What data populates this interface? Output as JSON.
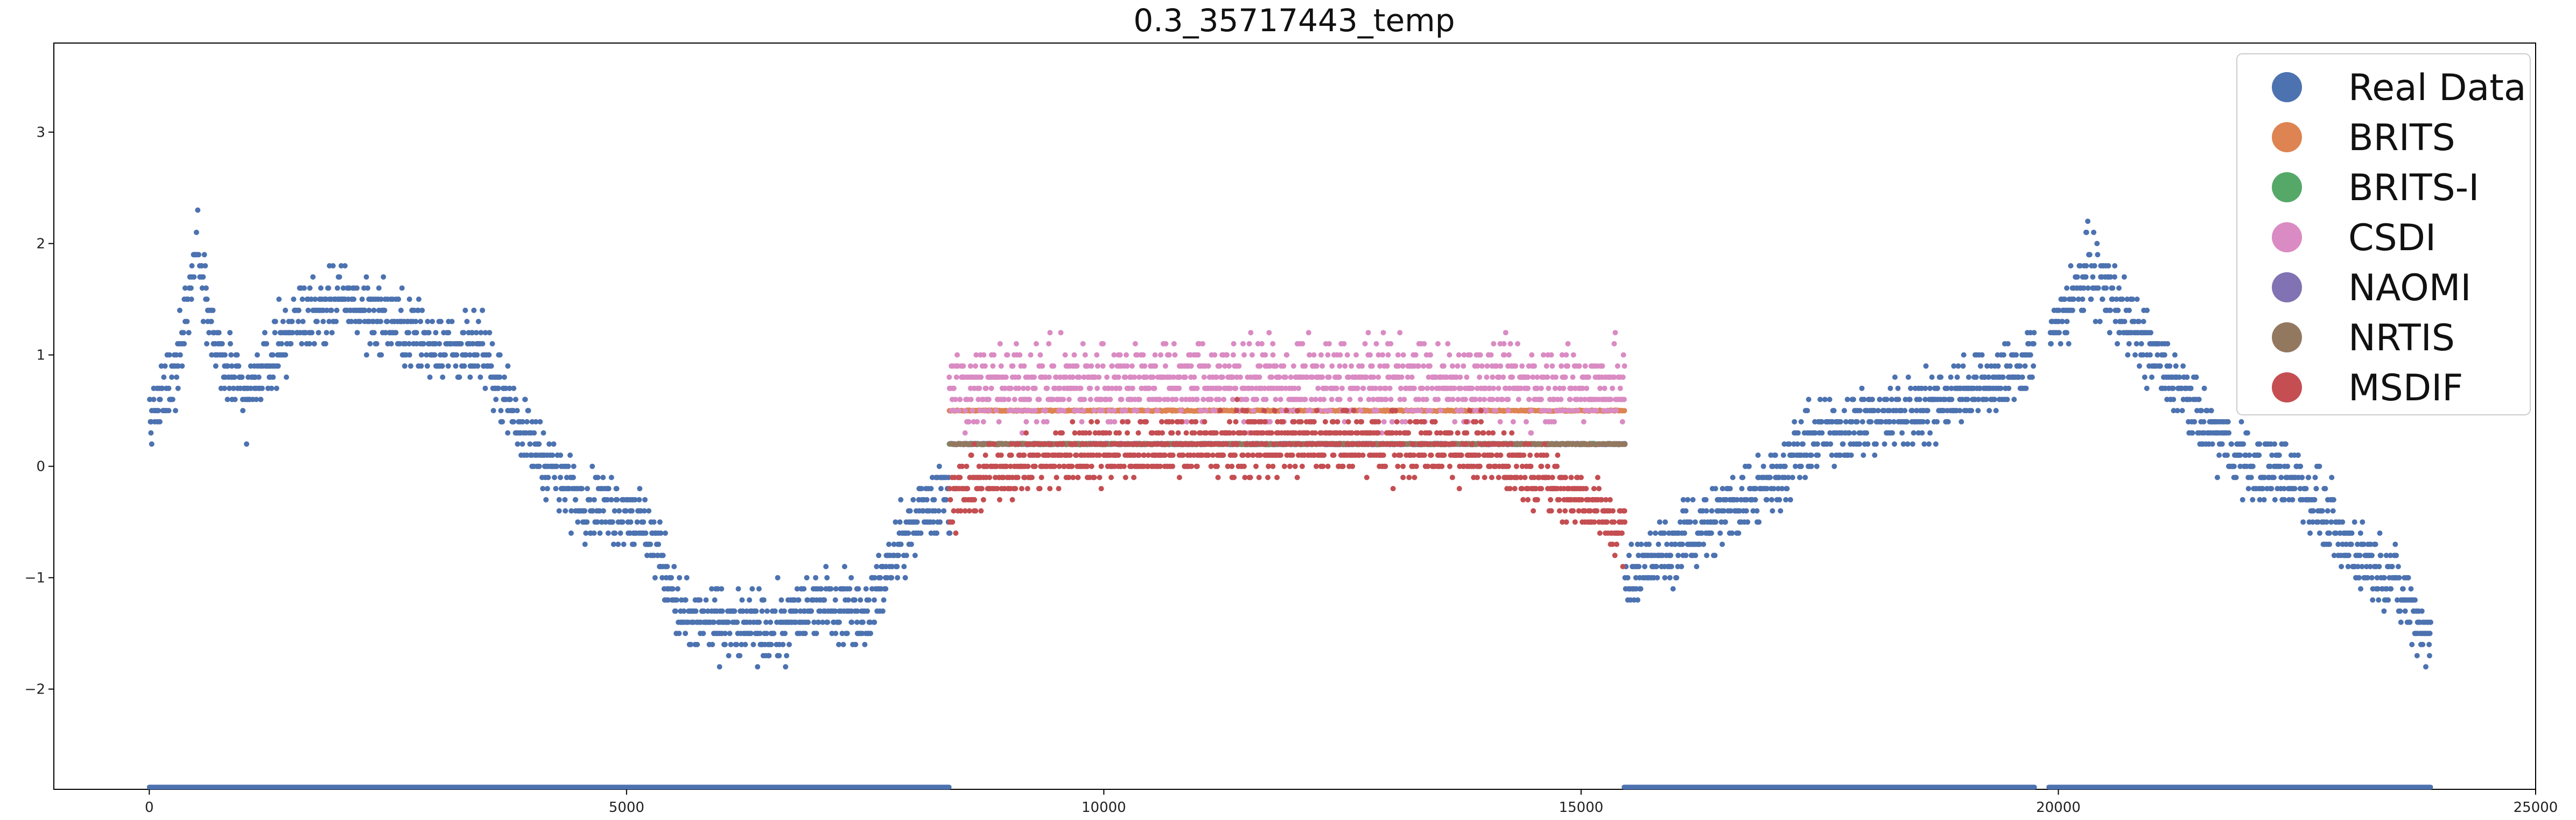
{
  "chart_data": {
    "type": "scatter",
    "title": "0.3_35717443_temp",
    "xlabel": "",
    "ylabel": "",
    "xlim": [
      -1000,
      25000
    ],
    "ylim": [
      -2.9,
      3.8
    ],
    "x_ticks": [
      0,
      5000,
      10000,
      15000,
      20000,
      25000
    ],
    "x_tick_labels": [
      "0",
      "5000",
      "10000",
      "15000",
      "20000",
      "25000"
    ],
    "y_ticks": [
      -2,
      -1,
      0,
      1,
      2,
      3
    ],
    "y_tick_labels": [
      "−2",
      "−1",
      "0",
      "1",
      "2",
      "3"
    ],
    "grid": false,
    "legend_position": "top-right",
    "missing_segments_at_bottom": [
      [
        0,
        8380
      ],
      [
        15450,
        19750
      ],
      [
        19900,
        23900
      ]
    ],
    "missing_marker_level": -2.88,
    "series": [
      {
        "name": "Real Data",
        "color": "#4c72b0",
        "x_range": [
          0,
          23900
        ],
        "trend": [
          [
            0,
            0.4
          ],
          [
            250,
            0.8
          ],
          [
            500,
            2.0
          ],
          [
            700,
            1.0
          ],
          [
            1000,
            0.6
          ],
          [
            1500,
            1.3
          ],
          [
            2000,
            1.5
          ],
          [
            2500,
            1.3
          ],
          [
            3000,
            1.1
          ],
          [
            3500,
            1.0
          ],
          [
            4000,
            0.2
          ],
          [
            4500,
            -0.3
          ],
          [
            5000,
            -0.4
          ],
          [
            5300,
            -0.7
          ],
          [
            5600,
            -1.4
          ],
          [
            6000,
            -1.4
          ],
          [
            6500,
            -1.5
          ],
          [
            7000,
            -1.2
          ],
          [
            7500,
            -1.3
          ],
          [
            8000,
            -0.5
          ],
          [
            8380,
            -0.2
          ],
          [
            15500,
            -1.0
          ],
          [
            16000,
            -0.7
          ],
          [
            16500,
            -0.4
          ],
          [
            17000,
            -0.1
          ],
          [
            17500,
            0.3
          ],
          [
            18000,
            0.4
          ],
          [
            18500,
            0.5
          ],
          [
            19000,
            0.7
          ],
          [
            19500,
            0.8
          ],
          [
            20000,
            1.3
          ],
          [
            20300,
            1.8
          ],
          [
            20800,
            1.2
          ],
          [
            21500,
            0.4
          ],
          [
            22000,
            0.0
          ],
          [
            22500,
            -0.1
          ],
          [
            23000,
            -0.7
          ],
          [
            23500,
            -1.0
          ],
          [
            23900,
            -1.6
          ]
        ],
        "spread": 0.45,
        "gaps": [
          [
            8380,
            15450
          ],
          [
            19750,
            19900
          ]
        ]
      },
      {
        "name": "BRITS",
        "color": "#dd8452",
        "x_range": [
          8380,
          15450
        ],
        "level": 0.5,
        "spread": 0.05
      },
      {
        "name": "BRITS-I",
        "color": "#55a868",
        "x_range": [
          8380,
          15450
        ],
        "level": 0.2,
        "spread": 0.05
      },
      {
        "name": "CSDI",
        "color": "#da8bc3",
        "x_range": [
          8380,
          15450
        ],
        "trend": [
          [
            8380,
            0.7
          ],
          [
            10000,
            0.75
          ],
          [
            12000,
            0.75
          ],
          [
            14000,
            0.75
          ],
          [
            15450,
            0.7
          ]
        ],
        "spread": 0.55
      },
      {
        "name": "NAOMI",
        "color": "#8172b3",
        "x_range": [
          8380,
          15450
        ],
        "level": 0.18,
        "spread": 0.02
      },
      {
        "name": "NRTIS",
        "color": "#937860",
        "x_range": [
          8380,
          15450
        ],
        "level": 0.19,
        "spread": 0.02
      },
      {
        "name": "MSDIF",
        "color": "#c44e52",
        "x_range": [
          8380,
          15450
        ],
        "trend": [
          [
            8380,
            -0.3
          ],
          [
            9000,
            0.0
          ],
          [
            10000,
            0.15
          ],
          [
            11000,
            0.2
          ],
          [
            12000,
            0.2
          ],
          [
            13000,
            0.2
          ],
          [
            14000,
            0.15
          ],
          [
            15000,
            -0.3
          ],
          [
            15450,
            -0.6
          ]
        ],
        "spread": 0.4
      }
    ]
  }
}
